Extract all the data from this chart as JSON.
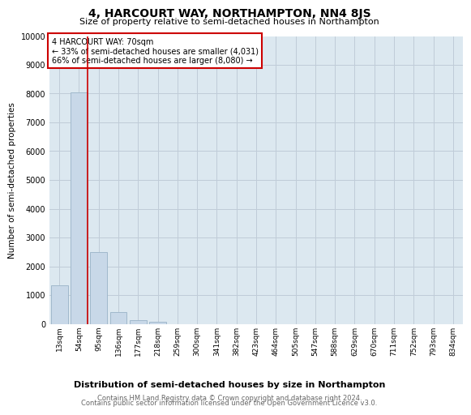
{
  "title": "4, HARCOURT WAY, NORTHAMPTON, NN4 8JS",
  "subtitle": "Size of property relative to semi-detached houses in Northampton",
  "xlabel": "Distribution of semi-detached houses by size in Northampton",
  "ylabel": "Number of semi-detached properties",
  "categories": [
    "13sqm",
    "54sqm",
    "95sqm",
    "136sqm",
    "177sqm",
    "218sqm",
    "259sqm",
    "300sqm",
    "341sqm",
    "382sqm",
    "423sqm",
    "464sqm",
    "505sqm",
    "547sqm",
    "588sqm",
    "629sqm",
    "670sqm",
    "711sqm",
    "752sqm",
    "793sqm",
    "834sqm"
  ],
  "values": [
    1350,
    8050,
    2500,
    400,
    130,
    80,
    0,
    0,
    0,
    0,
    0,
    0,
    0,
    0,
    0,
    0,
    0,
    0,
    0,
    0,
    0
  ],
  "bar_color": "#c8d8e8",
  "bar_edge_color": "#a0b8cc",
  "vline_color": "#cc0000",
  "annotation_text": "4 HARCOURT WAY: 70sqm\n← 33% of semi-detached houses are smaller (4,031)\n66% of semi-detached houses are larger (8,080) →",
  "annotation_box_color": "#ffffff",
  "annotation_box_edge": "#cc0000",
  "ylim": [
    0,
    10000
  ],
  "yticks": [
    0,
    1000,
    2000,
    3000,
    4000,
    5000,
    6000,
    7000,
    8000,
    9000,
    10000
  ],
  "grid_color": "#c0ccd8",
  "background_color": "#dce8f0",
  "footer_line1": "Contains HM Land Registry data © Crown copyright and database right 2024.",
  "footer_line2": "Contains public sector information licensed under the Open Government Licence v3.0."
}
